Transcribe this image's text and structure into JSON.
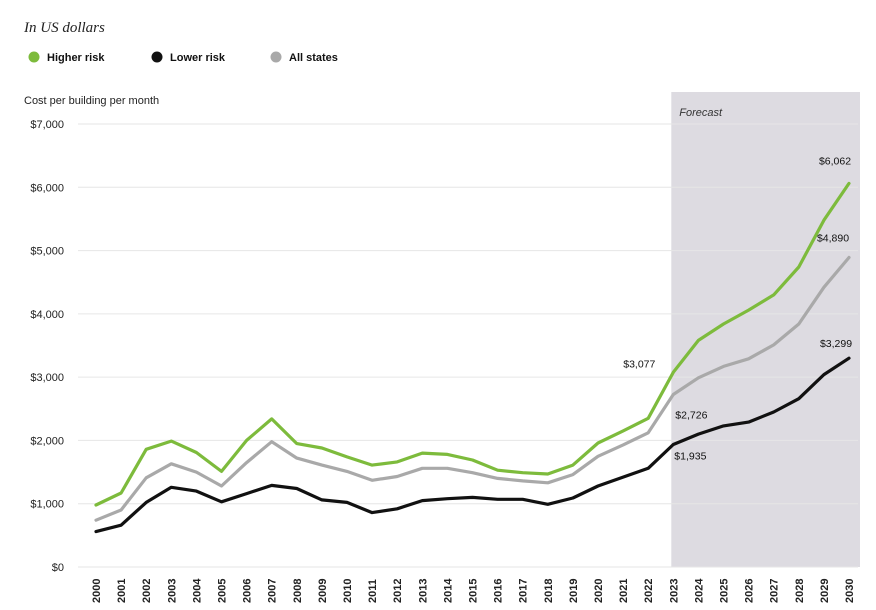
{
  "chart_data": {
    "type": "line",
    "subtitle": "In US dollars",
    "ylabel": "Cost per building per month",
    "ylim": [
      0,
      7000
    ],
    "yticks": [
      "$0",
      "$1,000",
      "$2,000",
      "$3,000",
      "$4,000",
      "$5,000",
      "$6,000",
      "$7,000"
    ],
    "ytick_values": [
      0,
      1000,
      2000,
      3000,
      4000,
      5000,
      6000,
      7000
    ],
    "grid": true,
    "legend_position": "top-left",
    "forecast": {
      "label": "Forecast",
      "start": "2023",
      "end": "2030"
    },
    "categories": [
      "2000",
      "2001",
      "2002",
      "2003",
      "2004",
      "2005",
      "2006",
      "2007",
      "2008",
      "2009",
      "2010",
      "2011",
      "2012",
      "2013",
      "2014",
      "2015",
      "2016",
      "2017",
      "2018",
      "2019",
      "2020",
      "2021",
      "2022",
      "2023",
      "2024",
      "2025",
      "2026",
      "2027",
      "2028",
      "2029",
      "2030"
    ],
    "series": [
      {
        "name": "Higher risk",
        "color": "#7dbb3c",
        "values": [
          980,
          1170,
          1860,
          1990,
          1810,
          1510,
          2000,
          2340,
          1950,
          1880,
          1740,
          1610,
          1660,
          1800,
          1780,
          1690,
          1530,
          1490,
          1470,
          1610,
          1960,
          2150,
          2350,
          3077,
          3580,
          3840,
          4060,
          4300,
          4740,
          5480,
          6062
        ]
      },
      {
        "name": "Lower risk",
        "color": "#111111",
        "values": [
          560,
          660,
          1020,
          1260,
          1200,
          1030,
          1160,
          1290,
          1240,
          1060,
          1020,
          860,
          920,
          1050,
          1080,
          1100,
          1070,
          1070,
          990,
          1090,
          1280,
          1420,
          1560,
          1935,
          2100,
          2230,
          2290,
          2450,
          2660,
          3040,
          3299
        ]
      },
      {
        "name": "All states",
        "color": "#a9a9a9",
        "values": [
          740,
          900,
          1410,
          1630,
          1500,
          1280,
          1650,
          1980,
          1720,
          1610,
          1510,
          1370,
          1430,
          1560,
          1560,
          1490,
          1400,
          1360,
          1330,
          1460,
          1750,
          1930,
          2120,
          2726,
          2990,
          3170,
          3290,
          3510,
          3840,
          4420,
          4890
        ]
      }
    ],
    "annotations": [
      {
        "text": "$3,077",
        "x": "2023",
        "y": 3077,
        "series": "Higher risk"
      },
      {
        "text": "$2,726",
        "x": "2023",
        "y": 2726,
        "series": "All states"
      },
      {
        "text": "$1,935",
        "x": "2023",
        "y": 1935,
        "series": "Lower risk"
      },
      {
        "text": "$6,062",
        "x": "2030",
        "y": 6062,
        "series": "Higher risk"
      },
      {
        "text": "$4,890",
        "x": "2030",
        "y": 4890,
        "series": "All states"
      },
      {
        "text": "$3,299",
        "x": "2030",
        "y": 3299,
        "series": "Lower risk"
      }
    ]
  }
}
